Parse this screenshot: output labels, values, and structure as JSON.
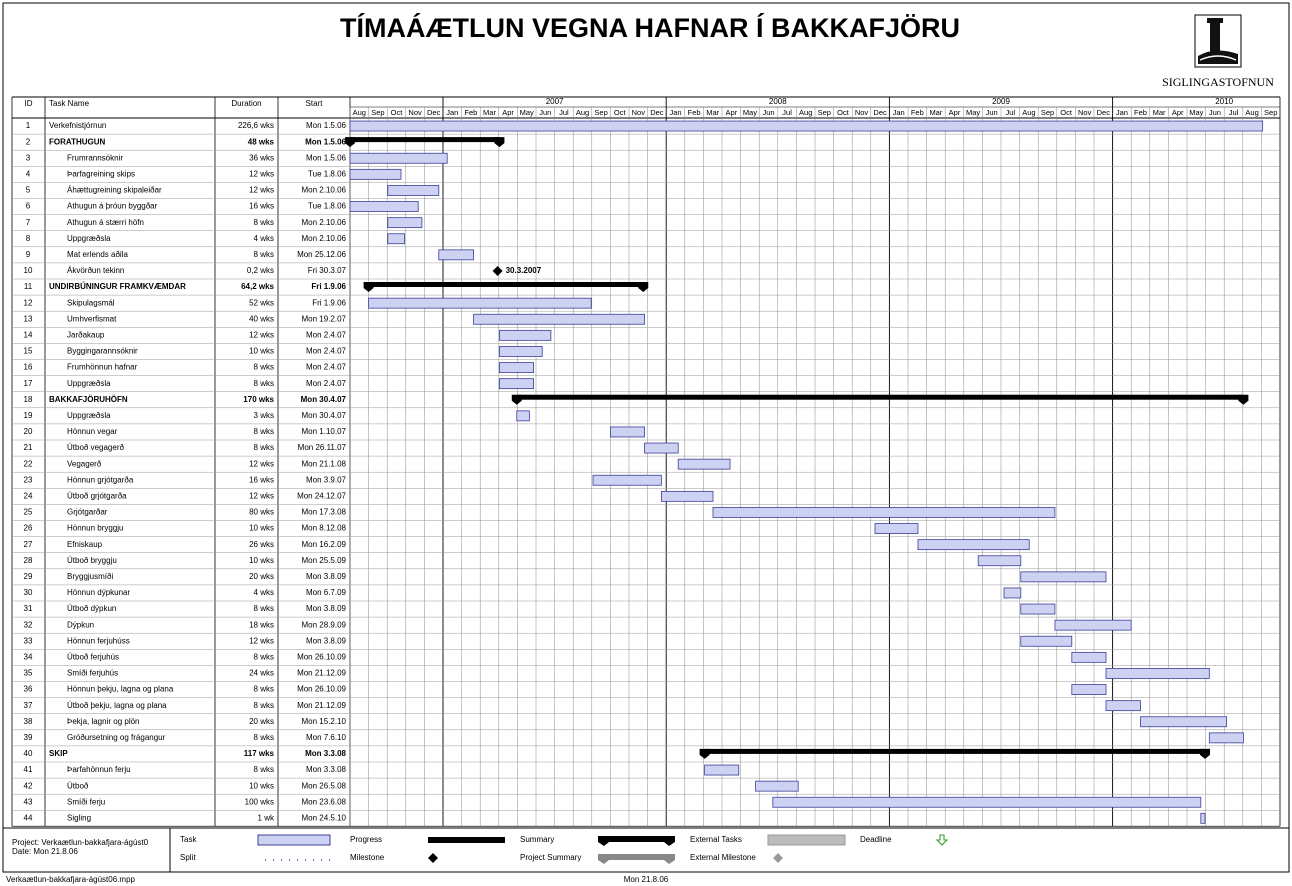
{
  "title": "TÍMAÁÆTLUN VEGNA HAFNAR Í BAKKAFJÖRU",
  "logo": "SIGLINGASTOFNUN",
  "table": {
    "columns": [
      "ID",
      "Task Name",
      "Duration",
      "Start"
    ],
    "rows": [
      {
        "id": "1",
        "name": "Verkefnistjórnun",
        "duration": "226,6 wks",
        "start": "Mon 1.5.06"
      },
      {
        "id": "2",
        "name": "FORATHUGUN",
        "duration": "48 wks",
        "start": "Mon 1.5.06",
        "kind": "summary"
      },
      {
        "id": "3",
        "name": "Frumrannsóknir",
        "duration": "36 wks",
        "start": "Mon 1.5.06"
      },
      {
        "id": "4",
        "name": "Þarfagreining skips",
        "duration": "12 wks",
        "start": "Tue 1.8.06"
      },
      {
        "id": "5",
        "name": "Áhættugreining skipaleiðar",
        "duration": "12 wks",
        "start": "Mon 2.10.06"
      },
      {
        "id": "6",
        "name": "Athugun á þróun byggðar",
        "duration": "16 wks",
        "start": "Tue 1.8.06"
      },
      {
        "id": "7",
        "name": "Athugun á stærri höfn",
        "duration": "8 wks",
        "start": "Mon 2.10.06"
      },
      {
        "id": "8",
        "name": "Uppgræðsla",
        "duration": "4 wks",
        "start": "Mon 2.10.06"
      },
      {
        "id": "9",
        "name": "Mat erlends aðila",
        "duration": "8 wks",
        "start": "Mon 25.12.06"
      },
      {
        "id": "10",
        "name": "Ákvörðun tekinn",
        "duration": "0,2 wks",
        "start": "Fri 30.3.07",
        "kind": "milestone",
        "label": "30.3.2007"
      },
      {
        "id": "11",
        "name": "UNDIRBÚNINGUR FRAMKVÆMDAR",
        "duration": "64,2 wks",
        "start": "Fri 1.9.06",
        "kind": "summary"
      },
      {
        "id": "12",
        "name": "Skipulagsmál",
        "duration": "52 wks",
        "start": "Fri 1.9.06"
      },
      {
        "id": "13",
        "name": "Umhverfismat",
        "duration": "40 wks",
        "start": "Mon 19.2.07"
      },
      {
        "id": "14",
        "name": "Jarðakaup",
        "duration": "12 wks",
        "start": "Mon 2.4.07"
      },
      {
        "id": "15",
        "name": "Byggingarannsóknir",
        "duration": "10 wks",
        "start": "Mon 2.4.07"
      },
      {
        "id": "16",
        "name": "Frumhönnun hafnar",
        "duration": "8 wks",
        "start": "Mon 2.4.07"
      },
      {
        "id": "17",
        "name": "Uppgræðsla",
        "duration": "8 wks",
        "start": "Mon 2.4.07"
      },
      {
        "id": "18",
        "name": "BAKKAFJÖRUHÖFN",
        "duration": "170 wks",
        "start": "Mon 30.4.07",
        "kind": "summary"
      },
      {
        "id": "19",
        "name": "Uppgræðsla",
        "duration": "3 wks",
        "start": "Mon 30.4.07"
      },
      {
        "id": "20",
        "name": "Hönnun vegar",
        "duration": "8 wks",
        "start": "Mon 1.10.07"
      },
      {
        "id": "21",
        "name": "Útboð vegagerð",
        "duration": "8 wks",
        "start": "Mon 26.11.07"
      },
      {
        "id": "22",
        "name": "Vegagerð",
        "duration": "12 wks",
        "start": "Mon 21.1.08"
      },
      {
        "id": "23",
        "name": "Hönnun grjótgarða",
        "duration": "16 wks",
        "start": "Mon 3.9.07"
      },
      {
        "id": "24",
        "name": "Útboð grjótgarða",
        "duration": "12 wks",
        "start": "Mon 24.12.07"
      },
      {
        "id": "25",
        "name": "Grjótgarðar",
        "duration": "80 wks",
        "start": "Mon 17.3.08"
      },
      {
        "id": "26",
        "name": "Hönnun bryggju",
        "duration": "10 wks",
        "start": "Mon 8.12.08"
      },
      {
        "id": "27",
        "name": "Efniskaup",
        "duration": "26 wks",
        "start": "Mon 16.2.09"
      },
      {
        "id": "28",
        "name": "Útboð bryggju",
        "duration": "10 wks",
        "start": "Mon 25.5.09"
      },
      {
        "id": "29",
        "name": "Bryggjusmíði",
        "duration": "20 wks",
        "start": "Mon 3.8.09"
      },
      {
        "id": "30",
        "name": "Hönnun dýpkunar",
        "duration": "4 wks",
        "start": "Mon 6.7.09"
      },
      {
        "id": "31",
        "name": "Útboð dýpkun",
        "duration": "8 wks",
        "start": "Mon 3.8.09"
      },
      {
        "id": "32",
        "name": "Dýpkun",
        "duration": "18 wks",
        "start": "Mon 28.9.09"
      },
      {
        "id": "33",
        "name": "Hönnun ferjuhúss",
        "duration": "12 wks",
        "start": "Mon 3.8.09"
      },
      {
        "id": "34",
        "name": "Útboð ferjuhús",
        "duration": "8 wks",
        "start": "Mon 26.10.09"
      },
      {
        "id": "35",
        "name": "Smíði ferjuhús",
        "duration": "24 wks",
        "start": "Mon 21.12.09"
      },
      {
        "id": "36",
        "name": "Hönnun þekju, lagna og plana",
        "duration": "8 wks",
        "start": "Mon 26.10.09"
      },
      {
        "id": "37",
        "name": "Útboð þekju, lagna og plana",
        "duration": "8 wks",
        "start": "Mon 21.12.09"
      },
      {
        "id": "38",
        "name": "Þekja, lagnir og plön",
        "duration": "20 wks",
        "start": "Mon 15.2.10"
      },
      {
        "id": "39",
        "name": "Gróðursetning og frágangur",
        "duration": "8 wks",
        "start": "Mon 7.6.10"
      },
      {
        "id": "40",
        "name": "SKIP",
        "duration": "117 wks",
        "start": "Mon 3.3.08",
        "kind": "summary"
      },
      {
        "id": "41",
        "name": "Þarfahönnun ferju",
        "duration": "8 wks",
        "start": "Mon 3.3.08"
      },
      {
        "id": "42",
        "name": "Útboð",
        "duration": "10 wks",
        "start": "Mon 26.5.08"
      },
      {
        "id": "43",
        "name": "Smíði ferju",
        "duration": "100 wks",
        "start": "Mon 23.6.08"
      },
      {
        "id": "44",
        "name": "Sigling",
        "duration": "1 wk",
        "start": "Mon 24.5.10"
      }
    ]
  },
  "timeline": [
    {
      "year": null,
      "months": [
        "Aug",
        "Sep",
        "Oct",
        "Nov",
        "Dec"
      ]
    },
    {
      "year": "2007",
      "months": [
        "Jan",
        "Feb",
        "Mar",
        "Apr",
        "May",
        "Jun",
        "Jul",
        "Aug",
        "Sep",
        "Oct",
        "Nov",
        "Dec"
      ]
    },
    {
      "year": "2008",
      "months": [
        "Jan",
        "Feb",
        "Mar",
        "Apr",
        "May",
        "Jun",
        "Jul",
        "Aug",
        "Sep",
        "Oct",
        "Nov",
        "Dec"
      ]
    },
    {
      "year": "2009",
      "months": [
        "Jan",
        "Feb",
        "Mar",
        "Apr",
        "May",
        "Jun",
        "Jul",
        "Aug",
        "Sep",
        "Oct",
        "Nov",
        "Dec"
      ]
    },
    {
      "year": "2010",
      "months": [
        "Jan",
        "Feb",
        "Mar",
        "Apr",
        "May",
        "Jun",
        "Jul",
        "Aug",
        "Sep"
      ]
    }
  ],
  "legend": {
    "project": "Project: Verkaætlun-bakkafjara-ágúst0",
    "date": "Date: Mon 21.8.06",
    "items": [
      "Task",
      "Split",
      "Progress",
      "Milestone",
      "Summary",
      "Project Summary",
      "External Tasks",
      "External Milestone",
      "Deadline"
    ]
  },
  "footer": {
    "file": "Verkaætlun-bakkafjara-ágúst06.mpp",
    "date": "Mon 21.8.06"
  }
}
